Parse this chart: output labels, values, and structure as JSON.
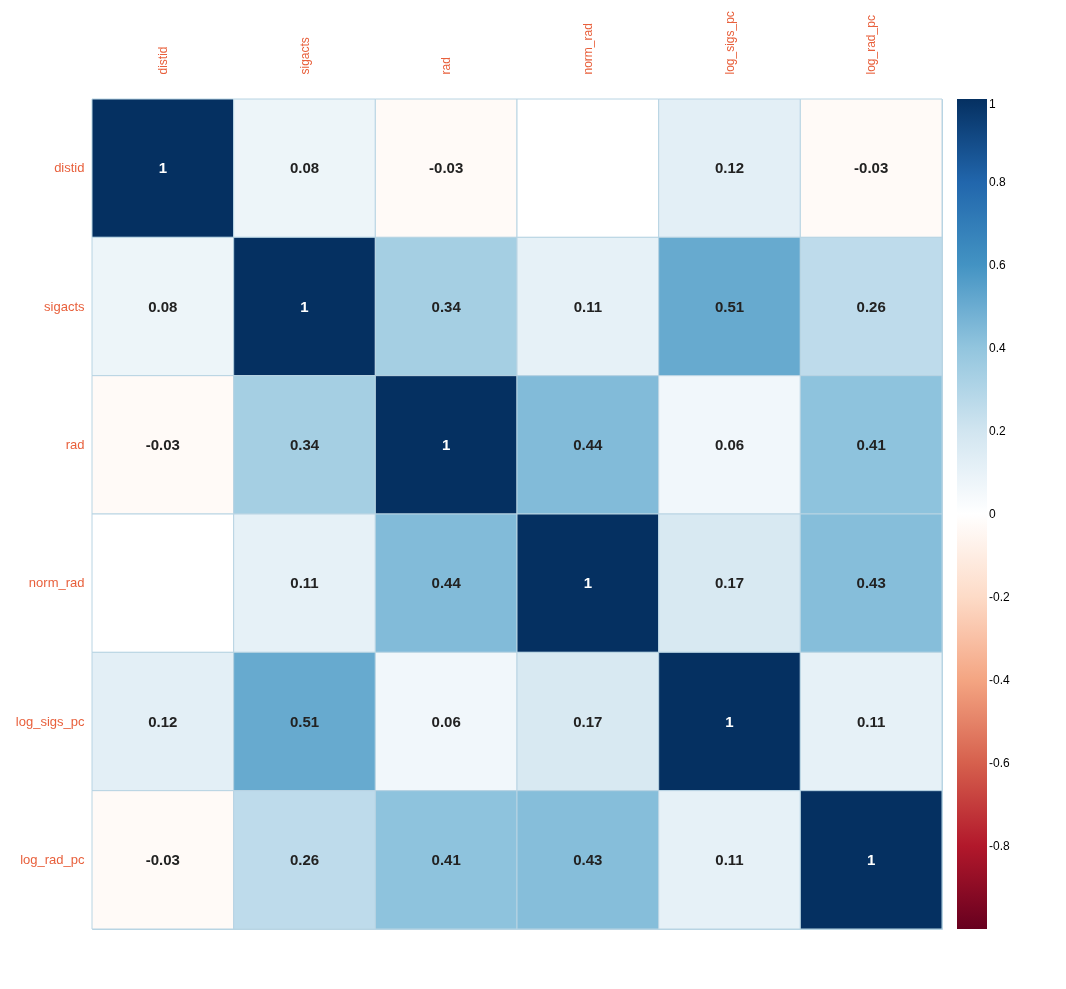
{
  "chart_data": {
    "type": "heatmap",
    "categories": [
      "distid",
      "sigacts",
      "rad",
      "norm_rad",
      "log_sigs_pc",
      "log_rad_pc"
    ],
    "y_categories": [
      "distid",
      "sigacts",
      "rad",
      "norm_rad",
      "log_sigs_pc",
      "log_rad_pc"
    ],
    "cells": [
      [
        1,
        0.08,
        -0.03,
        0,
        0.12,
        -0.03
      ],
      [
        0.08,
        1,
        0.34,
        0.11,
        0.51,
        0.26
      ],
      [
        -0.03,
        0.34,
        1,
        0.44,
        0.06,
        0.41
      ],
      [
        0,
        0.11,
        0.44,
        1,
        0.17,
        0.43
      ],
      [
        0.12,
        0.51,
        0.06,
        0.17,
        1,
        0.11
      ],
      [
        -0.03,
        0.26,
        0.41,
        0.43,
        0.11,
        1
      ]
    ],
    "cell_labels": [
      [
        "1",
        "0.08",
        "-0.03",
        null,
        "0.12",
        "-0.03"
      ],
      [
        "0.08",
        "1",
        "0.34",
        "0.11",
        "0.51",
        "0.26"
      ],
      [
        "-0.03",
        "0.34",
        "1",
        "0.44",
        "0.06",
        "0.41"
      ],
      [
        null,
        "0.11",
        "0.44",
        "1",
        "0.17",
        "0.43"
      ],
      [
        "0.12",
        "0.51",
        "0.06",
        "0.17",
        "1",
        "0.11"
      ],
      [
        "-0.03",
        "0.26",
        "0.41",
        "0.43",
        "0.11",
        "1"
      ]
    ],
    "clim": [
      -1,
      1
    ],
    "cticks": [
      -0.8,
      -0.6,
      -0.4,
      -0.2,
      0,
      0.2,
      0.4,
      0.6,
      0.8,
      1
    ]
  }
}
